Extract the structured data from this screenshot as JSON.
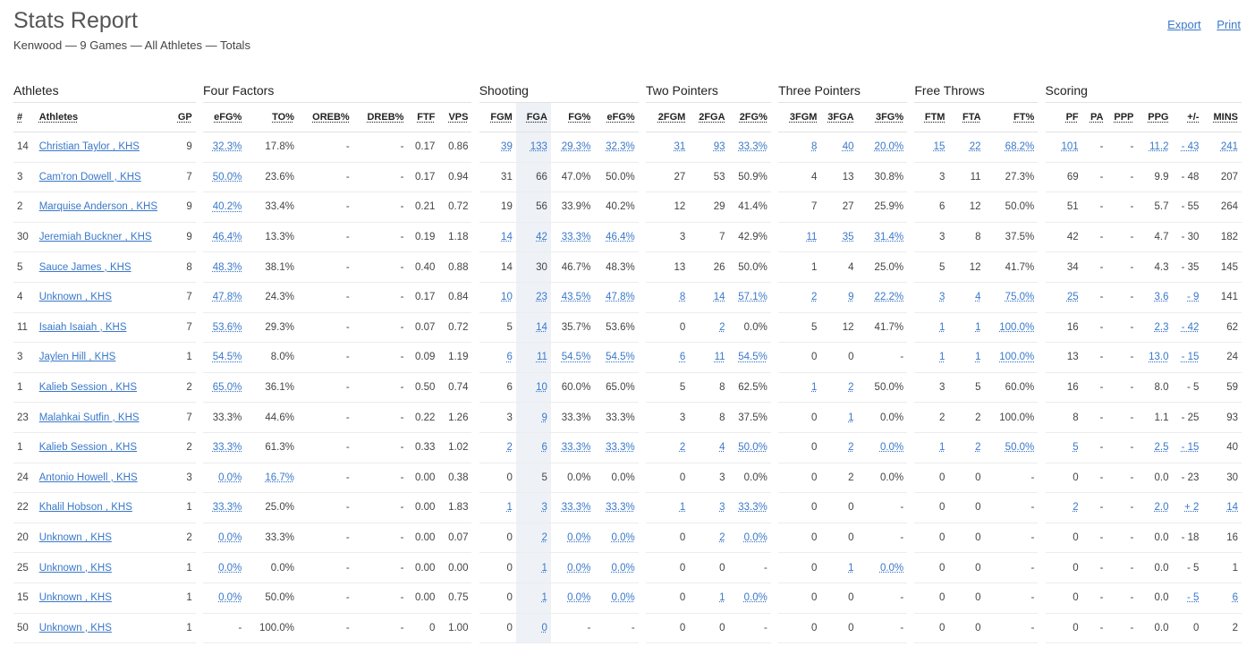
{
  "header": {
    "title": "Stats Report",
    "subtitle": "Kenwood — 9 Games — All Athletes — Totals",
    "export_label": "Export",
    "print_label": "Print"
  },
  "groups": {
    "athletes": "Athletes",
    "four_factors": "Four Factors",
    "shooting": "Shooting",
    "two_pointers": "Two Pointers",
    "three_pointers": "Three Pointers",
    "free_throws": "Free Throws",
    "scoring": "Scoring"
  },
  "columns": [
    "#",
    "Athletes",
    "GP",
    "eFG%",
    "TO%",
    "OREB%",
    "DREB%",
    "FTF",
    "VPS",
    "FGM",
    "FGA",
    "FG%",
    "eFG%",
    "2FGM",
    "2FGA",
    "2FG%",
    "3FGM",
    "3FGA",
    "3FG%",
    "FTM",
    "FTA",
    "FT%",
    "PF",
    "PA",
    "PPP",
    "PPG",
    "+/-",
    "MINS"
  ],
  "rows": [
    [
      "14",
      "Christian Taylor , KHS",
      "9",
      "32.3%",
      "17.8%",
      "-",
      "-",
      "0.17",
      "0.86",
      "39",
      "133",
      "29.3%",
      "32.3%",
      "31",
      "93",
      "33.3%",
      "8",
      "40",
      "20.0%",
      "15",
      "22",
      "68.2%",
      "101",
      "-",
      "-",
      "11.2",
      "- 43",
      "241"
    ],
    [
      "3",
      "Cam'ron Dowell , KHS",
      "7",
      "50.0%",
      "23.6%",
      "-",
      "-",
      "0.17",
      "0.94",
      "31",
      "66",
      "47.0%",
      "50.0%",
      "27",
      "53",
      "50.9%",
      "4",
      "13",
      "30.8%",
      "3",
      "11",
      "27.3%",
      "69",
      "-",
      "-",
      "9.9",
      "- 48",
      "207"
    ],
    [
      "2",
      "Marquise Anderson , KHS",
      "9",
      "40.2%",
      "33.4%",
      "-",
      "-",
      "0.21",
      "0.72",
      "19",
      "56",
      "33.9%",
      "40.2%",
      "12",
      "29",
      "41.4%",
      "7",
      "27",
      "25.9%",
      "6",
      "12",
      "50.0%",
      "51",
      "-",
      "-",
      "5.7",
      "- 55",
      "264"
    ],
    [
      "30",
      "Jeremiah Buckner , KHS",
      "9",
      "46.4%",
      "13.3%",
      "-",
      "-",
      "0.19",
      "1.18",
      "14",
      "42",
      "33.3%",
      "46.4%",
      "3",
      "7",
      "42.9%",
      "11",
      "35",
      "31.4%",
      "3",
      "8",
      "37.5%",
      "42",
      "-",
      "-",
      "4.7",
      "- 30",
      "182"
    ],
    [
      "5",
      "Sauce James , KHS",
      "8",
      "48.3%",
      "38.1%",
      "-",
      "-",
      "0.40",
      "0.88",
      "14",
      "30",
      "46.7%",
      "48.3%",
      "13",
      "26",
      "50.0%",
      "1",
      "4",
      "25.0%",
      "5",
      "12",
      "41.7%",
      "34",
      "-",
      "-",
      "4.3",
      "- 35",
      "145"
    ],
    [
      "4",
      "Unknown , KHS",
      "7",
      "47.8%",
      "24.3%",
      "-",
      "-",
      "0.17",
      "0.84",
      "10",
      "23",
      "43.5%",
      "47.8%",
      "8",
      "14",
      "57.1%",
      "2",
      "9",
      "22.2%",
      "3",
      "4",
      "75.0%",
      "25",
      "-",
      "-",
      "3.6",
      "- 9",
      "141"
    ],
    [
      "11",
      "Isaiah Isaiah , KHS",
      "7",
      "53.6%",
      "29.3%",
      "-",
      "-",
      "0.07",
      "0.72",
      "5",
      "14",
      "35.7%",
      "53.6%",
      "0",
      "2",
      "0.0%",
      "5",
      "12",
      "41.7%",
      "1",
      "1",
      "100.0%",
      "16",
      "-",
      "-",
      "2.3",
      "- 42",
      "62"
    ],
    [
      "3",
      "Jaylen Hill , KHS",
      "1",
      "54.5%",
      "8.0%",
      "-",
      "-",
      "0.09",
      "1.19",
      "6",
      "11",
      "54.5%",
      "54.5%",
      "6",
      "11",
      "54.5%",
      "0",
      "0",
      "-",
      "1",
      "1",
      "100.0%",
      "13",
      "-",
      "-",
      "13.0",
      "- 15",
      "24"
    ],
    [
      "1",
      "Kalieb Session , KHS",
      "2",
      "65.0%",
      "36.1%",
      "-",
      "-",
      "0.50",
      "0.74",
      "6",
      "10",
      "60.0%",
      "65.0%",
      "5",
      "8",
      "62.5%",
      "1",
      "2",
      "50.0%",
      "3",
      "5",
      "60.0%",
      "16",
      "-",
      "-",
      "8.0",
      "- 5",
      "59"
    ],
    [
      "23",
      "Malahkai Sutfin , KHS",
      "7",
      "33.3%",
      "44.6%",
      "-",
      "-",
      "0.22",
      "1.26",
      "3",
      "9",
      "33.3%",
      "33.3%",
      "3",
      "8",
      "37.5%",
      "0",
      "1",
      "0.0%",
      "2",
      "2",
      "100.0%",
      "8",
      "-",
      "-",
      "1.1",
      "- 25",
      "93"
    ],
    [
      "1",
      "Kalieb Session , KHS",
      "2",
      "33.3%",
      "61.3%",
      "-",
      "-",
      "0.33",
      "1.02",
      "2",
      "6",
      "33.3%",
      "33.3%",
      "2",
      "4",
      "50.0%",
      "0",
      "2",
      "0.0%",
      "1",
      "2",
      "50.0%",
      "5",
      "-",
      "-",
      "2.5",
      "- 15",
      "40"
    ],
    [
      "24",
      "Antonio Howell , KHS",
      "3",
      "0.0%",
      "16.7%",
      "-",
      "-",
      "0.00",
      "0.38",
      "0",
      "5",
      "0.0%",
      "0.0%",
      "0",
      "3",
      "0.0%",
      "0",
      "2",
      "0.0%",
      "0",
      "0",
      "-",
      "0",
      "-",
      "-",
      "0.0",
      "- 23",
      "30"
    ],
    [
      "22",
      "Khalil Hobson , KHS",
      "1",
      "33.3%",
      "25.0%",
      "-",
      "-",
      "0.00",
      "1.83",
      "1",
      "3",
      "33.3%",
      "33.3%",
      "1",
      "3",
      "33.3%",
      "0",
      "0",
      "-",
      "0",
      "0",
      "-",
      "2",
      "-",
      "-",
      "2.0",
      "+ 2",
      "14"
    ],
    [
      "20",
      "Unknown , KHS",
      "2",
      "0.0%",
      "33.3%",
      "-",
      "-",
      "0.00",
      "0.07",
      "0",
      "2",
      "0.0%",
      "0.0%",
      "0",
      "2",
      "0.0%",
      "0",
      "0",
      "-",
      "0",
      "0",
      "-",
      "0",
      "-",
      "-",
      "0.0",
      "- 18",
      "16"
    ],
    [
      "25",
      "Unknown , KHS",
      "1",
      "0.0%",
      "0.0%",
      "-",
      "-",
      "0.00",
      "0.00",
      "0",
      "1",
      "0.0%",
      "0.0%",
      "0",
      "0",
      "-",
      "0",
      "1",
      "0.0%",
      "0",
      "0",
      "-",
      "0",
      "-",
      "-",
      "0.0",
      "- 5",
      "1"
    ],
    [
      "15",
      "Unknown , KHS",
      "1",
      "0.0%",
      "50.0%",
      "-",
      "-",
      "0.00",
      "0.75",
      "0",
      "1",
      "0.0%",
      "0.0%",
      "0",
      "1",
      "0.0%",
      "0",
      "0",
      "-",
      "0",
      "0",
      "-",
      "0",
      "-",
      "-",
      "0.0",
      "- 5",
      "6"
    ],
    [
      "50",
      "Unknown , KHS",
      "1",
      "-",
      "100.0%",
      "-",
      "-",
      "0",
      "1.00",
      "0",
      "0",
      "-",
      "-",
      "0",
      "0",
      "-",
      "0",
      "0",
      "-",
      "0",
      "0",
      "-",
      "0",
      "-",
      "-",
      "0.0",
      "0",
      "2"
    ]
  ],
  "links": [
    [
      3,
      9,
      10,
      11,
      12,
      13,
      14,
      15,
      16,
      17,
      18,
      19,
      20,
      21,
      22,
      25,
      26,
      27
    ],
    [
      3
    ],
    [
      3
    ],
    [
      3,
      9,
      10,
      11,
      12,
      16,
      17,
      18
    ],
    [
      3
    ],
    [
      3,
      9,
      10,
      11,
      12,
      13,
      14,
      15,
      16,
      17,
      18,
      19,
      20,
      21,
      22,
      25,
      26
    ],
    [
      3,
      10,
      14,
      19,
      20,
      21,
      25,
      26
    ],
    [
      3,
      9,
      10,
      11,
      12,
      13,
      14,
      15,
      19,
      20,
      21,
      25,
      26
    ],
    [
      3,
      10,
      16,
      17
    ],
    [
      10,
      17
    ],
    [
      3,
      9,
      10,
      11,
      12,
      13,
      14,
      15,
      17,
      18,
      19,
      20,
      21,
      22,
      25,
      26
    ],
    [
      3,
      4
    ],
    [
      3,
      9,
      10,
      11,
      12,
      13,
      14,
      15,
      22,
      25,
      26,
      27
    ],
    [
      3,
      10,
      11,
      12,
      14,
      15
    ],
    [
      3,
      10,
      11,
      12,
      17,
      18
    ],
    [
      3,
      10,
      11,
      12,
      14,
      15,
      26,
      27
    ],
    [
      10
    ]
  ],
  "colors": {
    "link": "#3a78c9",
    "highlight": "#eef2f7",
    "rule": "#e2e2e2"
  }
}
